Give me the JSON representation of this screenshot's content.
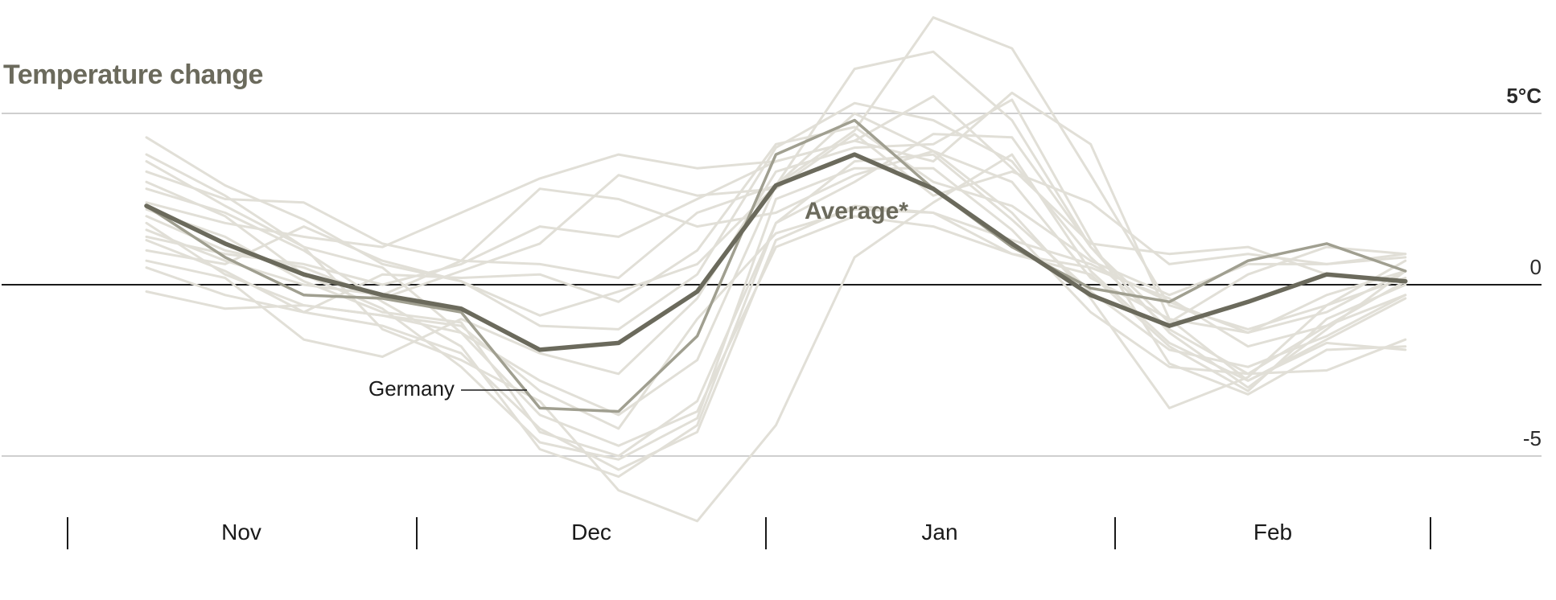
{
  "chart_data": {
    "type": "line",
    "title": "Temperature change",
    "xlabel": "",
    "ylabel": "",
    "yticks": [
      "5°C",
      "0",
      "-5"
    ],
    "ytick_values": [
      5,
      0,
      -5
    ],
    "ylim": [
      -5,
      5
    ],
    "month_labels": [
      "Nov",
      "Dec",
      "Jan",
      "Feb"
    ],
    "x": [
      0,
      1,
      2,
      3,
      4,
      5,
      6,
      7,
      8,
      9,
      10,
      11,
      12,
      13,
      14,
      15,
      16
    ],
    "grid": "horizontal at 5 and -5, zero baseline",
    "series": [
      {
        "name": "Average*",
        "role": "highlight",
        "color": "#6b6a5c",
        "values": [
          2.3,
          1.2,
          0.3,
          -0.3,
          -0.7,
          -1.9,
          -1.7,
          -0.2,
          2.9,
          3.8,
          2.8,
          1.2,
          -0.3,
          -1.2,
          -0.5,
          0.3,
          0.1
        ]
      },
      {
        "name": "Germany",
        "role": "secondary",
        "color": "#a09f90",
        "values": [
          2.3,
          0.8,
          -0.3,
          -0.4,
          -0.8,
          -3.6,
          -3.7,
          -1.5,
          3.8,
          4.8,
          2.8,
          1.1,
          -0.1,
          -0.5,
          0.7,
          1.2,
          0.4
        ]
      }
    ],
    "background_series_color": "#e1dfd7",
    "background_series": [
      [
        4.3,
        2.9,
        1.9,
        0.6,
        0.1,
        -1.2,
        -1.3,
        0.3,
        4.0,
        5.3,
        4.8,
        3.6,
        0.8,
        -1.3,
        -2.6,
        -2.5,
        -1.6
      ],
      [
        3.8,
        2.6,
        1.1,
        0.5,
        -1.4,
        -2.8,
        -3.8,
        -2.2,
        2.9,
        4.5,
        7.8,
        6.9,
        3.2,
        -0.6,
        -1.3,
        -0.6,
        0.7
      ],
      [
        3.3,
        2.5,
        2.4,
        1.2,
        0.7,
        0.6,
        0.2,
        2.1,
        2.9,
        6.3,
        6.8,
        4.8,
        1.1,
        -1.1,
        0.3,
        1.1,
        0.9
      ],
      [
        2.8,
        2.1,
        1.0,
        -0.5,
        -1.8,
        -4.8,
        -5.6,
        -4.1,
        1.8,
        3.6,
        3.8,
        1.9,
        -0.2,
        -1.9,
        -2.4,
        -1.5,
        -0.3
      ],
      [
        2.4,
        1.8,
        1.4,
        1.1,
        2.1,
        3.1,
        3.8,
        3.4,
        3.6,
        4.2,
        3.6,
        5.6,
        4.1,
        -1.0,
        -1.4,
        -0.3,
        0.4
      ],
      [
        2.0,
        1.0,
        0.5,
        -0.4,
        0.4,
        1.2,
        3.2,
        2.6,
        2.8,
        4.4,
        2.6,
        3.3,
        2.4,
        0.6,
        0.9,
        0.6,
        0.8
      ],
      [
        1.8,
        0.3,
        -0.6,
        -0.9,
        -1.2,
        -3.1,
        -4.2,
        -1.0,
        1.5,
        2.2,
        2.1,
        0.9,
        0.3,
        -1.8,
        -3.1,
        -1.0,
        0.0
      ],
      [
        1.6,
        0.7,
        0.0,
        -0.3,
        0.7,
        2.8,
        2.5,
        1.7,
        2.1,
        3.2,
        3.9,
        2.1,
        -0.4,
        -3.6,
        -2.7,
        -0.6,
        0.2
      ],
      [
        1.3,
        0.4,
        -0.8,
        -1.2,
        -2.0,
        -4.2,
        -5.4,
        -4.3,
        1.3,
        2.3,
        2.1,
        1.3,
        0.6,
        -0.5,
        -1.4,
        -0.8,
        0.4
      ],
      [
        1.0,
        0.6,
        1.7,
        0.7,
        0.1,
        -0.9,
        -0.2,
        0.6,
        2.9,
        5.0,
        3.9,
        3.0,
        0.2,
        -1.0,
        -2.8,
        -1.6,
        -0.4
      ],
      [
        0.7,
        0.2,
        -1.6,
        -2.1,
        -1.0,
        -2.0,
        -2.6,
        -0.4,
        3.3,
        4.0,
        4.1,
        5.4,
        1.3,
        -2.3,
        -3.2,
        -1.9,
        -1.8
      ],
      [
        0.5,
        -0.3,
        -0.8,
        0.3,
        0.2,
        0.3,
        -0.5,
        1.0,
        4.1,
        4.6,
        3.0,
        2.3,
        0.7,
        -0.3,
        0.6,
        0.6,
        0.9
      ],
      [
        -0.2,
        -0.7,
        -0.6,
        -0.9,
        -1.4,
        -3.8,
        -4.7,
        -3.7,
        1.1,
        2.0,
        1.7,
        0.9,
        0.5,
        -0.4,
        -1.8,
        -1.2,
        -0.3
      ],
      [
        3.6,
        2.3,
        1.1,
        -1.3,
        -2.2,
        -3.4,
        -6.0,
        -6.9,
        -4.1,
        0.8,
        2.4,
        3.8,
        0.4,
        -1.7,
        -2.8,
        -1.7,
        -1.9
      ],
      [
        2.2,
        1.4,
        0.1,
        -0.8,
        -1.1,
        -4.3,
        -5.0,
        -3.4,
        1.8,
        3.0,
        4.4,
        4.3,
        1.1,
        -1.4,
        -3.0,
        -1.3,
        0.4
      ],
      [
        3.0,
        2.0,
        0.3,
        -0.7,
        -2.4,
        -4.6,
        -5.1,
        -3.9,
        2.5,
        3.4,
        3.4,
        1.6,
        -0.8,
        -2.4,
        -2.6,
        -1.2,
        0.1
      ],
      [
        1.4,
        0.9,
        0.6,
        0.0,
        0.6,
        1.7,
        1.4,
        2.5,
        3.6,
        4.2,
        5.5,
        3.4,
        1.2,
        0.9,
        1.1,
        0.3,
        0.1
      ]
    ],
    "annotations": [
      {
        "text": "Average*",
        "series": "Average*"
      },
      {
        "text": "Germany",
        "series": "Germany"
      }
    ]
  }
}
